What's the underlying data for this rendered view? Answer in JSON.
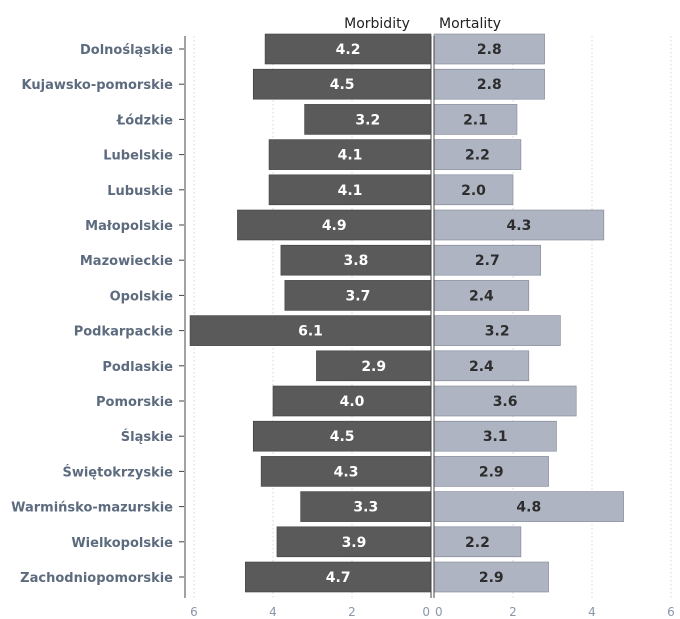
{
  "colors": {
    "morbidity_bar": "#5a5a5a",
    "mortality_bar": "#aeb4c1",
    "morbidity_label": "#ffffff",
    "mortality_label": "#2d2d2d",
    "grid": "#d7d7d7",
    "axis": "#444444"
  },
  "chart_data": {
    "type": "bar",
    "orientation": "horizontal",
    "layout": "diverging butterfly (two mirrored panels sharing category labels)",
    "categories": [
      "Dolnośląskie",
      "Kujawsko-pomorskie",
      "Łódzkie",
      "Lubelskie",
      "Lubuskie",
      "Małopolskie",
      "Mazowieckie",
      "Opolskie",
      "Podkarpackie",
      "Podlaskie",
      "Pomorskie",
      "Śląskie",
      "Świętokrzyskie",
      "Warmińsko-mazurskie",
      "Wielkopolskie",
      "Zachodniopomorskie"
    ],
    "series": [
      {
        "name": "Morbidity",
        "values": [
          4.2,
          4.5,
          3.2,
          4.1,
          4.1,
          4.9,
          3.8,
          3.7,
          6.1,
          2.9,
          4.0,
          4.5,
          4.3,
          3.3,
          3.9,
          4.7
        ],
        "labels": [
          "4.2",
          "4.5",
          "3.2",
          "4.1",
          "4.1",
          "4.9",
          "3.8",
          "3.7",
          "6.1",
          "2.9",
          "4.0",
          "4.5",
          "4.3",
          "3.3",
          "3.9",
          "4.7"
        ]
      },
      {
        "name": "Mortality",
        "values": [
          2.8,
          2.8,
          2.1,
          2.2,
          2.0,
          4.3,
          2.7,
          2.4,
          3.2,
          2.4,
          3.6,
          3.1,
          2.9,
          4.8,
          2.2,
          2.9
        ],
        "labels": [
          "2.8",
          "2.8",
          "2.1",
          "2.2",
          "2.0",
          "4.3",
          "2.7",
          "2.4",
          "3.2",
          "2.4",
          "3.6",
          "3.1",
          "2.9",
          "4.8",
          "2.2",
          "2.9"
        ]
      }
    ],
    "xlim": [
      0,
      6
    ],
    "xticks": [
      0,
      2,
      4,
      6
    ],
    "xtick_labels": [
      "0",
      "2",
      "4",
      "6"
    ],
    "grid": true,
    "data_labels": true
  }
}
